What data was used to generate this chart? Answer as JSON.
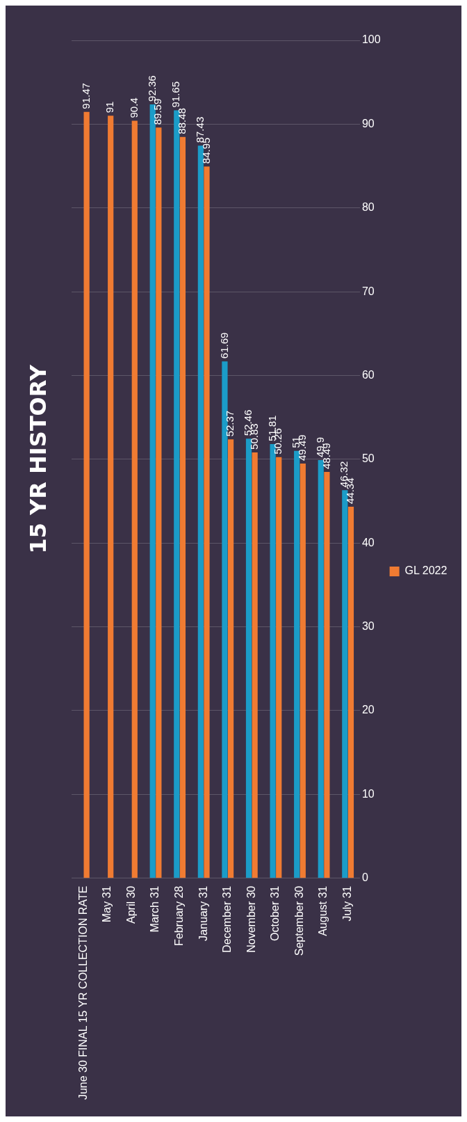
{
  "chart_data": {
    "type": "bar",
    "title": "15 YR HISTORY",
    "categories": [
      "June 30 FINAL 15 YR COLLECTION RATE",
      "May 31",
      "April 30",
      "March 31",
      "February 28",
      "January 31",
      "December 31",
      "November 30",
      "October 31",
      "September 30",
      "August 31",
      "July 31"
    ],
    "series": [
      {
        "color": "#1b9cc8",
        "values": [
          null,
          null,
          null,
          92.36,
          91.65,
          87.43,
          61.69,
          52.46,
          51.81,
          51,
          49.9,
          46.32
        ]
      },
      {
        "name": "GL 2022",
        "color": "#f07b32",
        "values": [
          91.47,
          91,
          90.4,
          89.59,
          88.48,
          84.95,
          52.37,
          50.83,
          50.26,
          49.49,
          48.49,
          44.34
        ]
      }
    ],
    "ylim": [
      0,
      100
    ],
    "yticks": [
      0,
      10,
      20,
      30,
      40,
      50,
      60,
      70,
      80,
      90,
      100
    ],
    "grid": "y",
    "legend": "right",
    "data_labels": true
  }
}
